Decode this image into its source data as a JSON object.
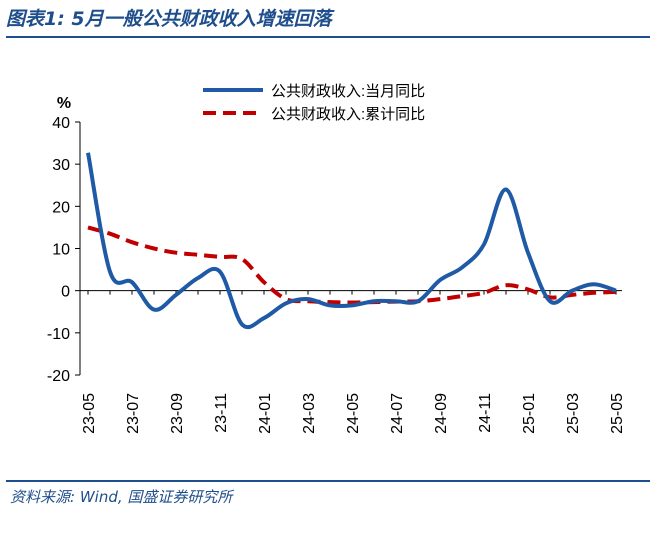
{
  "header": {
    "figure_title": "图表1:  5月一般公共财政收入增速回落"
  },
  "footer": {
    "source": "资料来源: Wind, 国盛证券研究所"
  },
  "chart_data": {
    "type": "line",
    "title": "",
    "xlabel": "",
    "ylabel": "%",
    "ylim": [
      -20,
      40
    ],
    "yticks": [
      -20,
      -10,
      0,
      10,
      20,
      30,
      40
    ],
    "x": [
      "23-05",
      "23-06",
      "23-07",
      "23-08",
      "23-09",
      "23-10",
      "23-11",
      "23-12",
      "24-01",
      "24-02",
      "24-03",
      "24-04",
      "24-05",
      "24-06",
      "24-07",
      "24-08",
      "24-09",
      "24-10",
      "24-11",
      "24-12",
      "25-01",
      "25-02",
      "25-03",
      "25-04",
      "25-05"
    ],
    "xtick_labels": [
      "23-05",
      "23-07",
      "23-09",
      "23-11",
      "24-01",
      "24-03",
      "24-05",
      "24-07",
      "24-09",
      "24-11",
      "25-01",
      "25-03",
      "25-05"
    ],
    "legend_position": "top-right",
    "series": [
      {
        "name": "公共财政收入:当月同比",
        "style": "solid",
        "color": "#1f5aa6",
        "values": [
          32.7,
          4.5,
          2.0,
          -4.5,
          -1.0,
          3.0,
          4.5,
          -8.0,
          -6.5,
          -3.0,
          -2.0,
          -3.5,
          -3.5,
          -2.5,
          -2.5,
          -2.5,
          2.5,
          5.5,
          11.0,
          24.0,
          9.0,
          -2.5,
          0.0,
          1.5,
          0.0
        ]
      },
      {
        "name": "公共财政收入:累计同比",
        "style": "dashed",
        "color": "#c00000",
        "values": [
          15.0,
          13.5,
          11.5,
          10.0,
          9.0,
          8.5,
          8.0,
          7.5,
          2.0,
          -2.0,
          -2.5,
          -2.7,
          -2.8,
          -2.7,
          -2.6,
          -2.5,
          -2.0,
          -1.3,
          -0.5,
          1.3,
          0.3,
          -1.6,
          -1.0,
          -0.5,
          -0.3
        ]
      }
    ]
  }
}
